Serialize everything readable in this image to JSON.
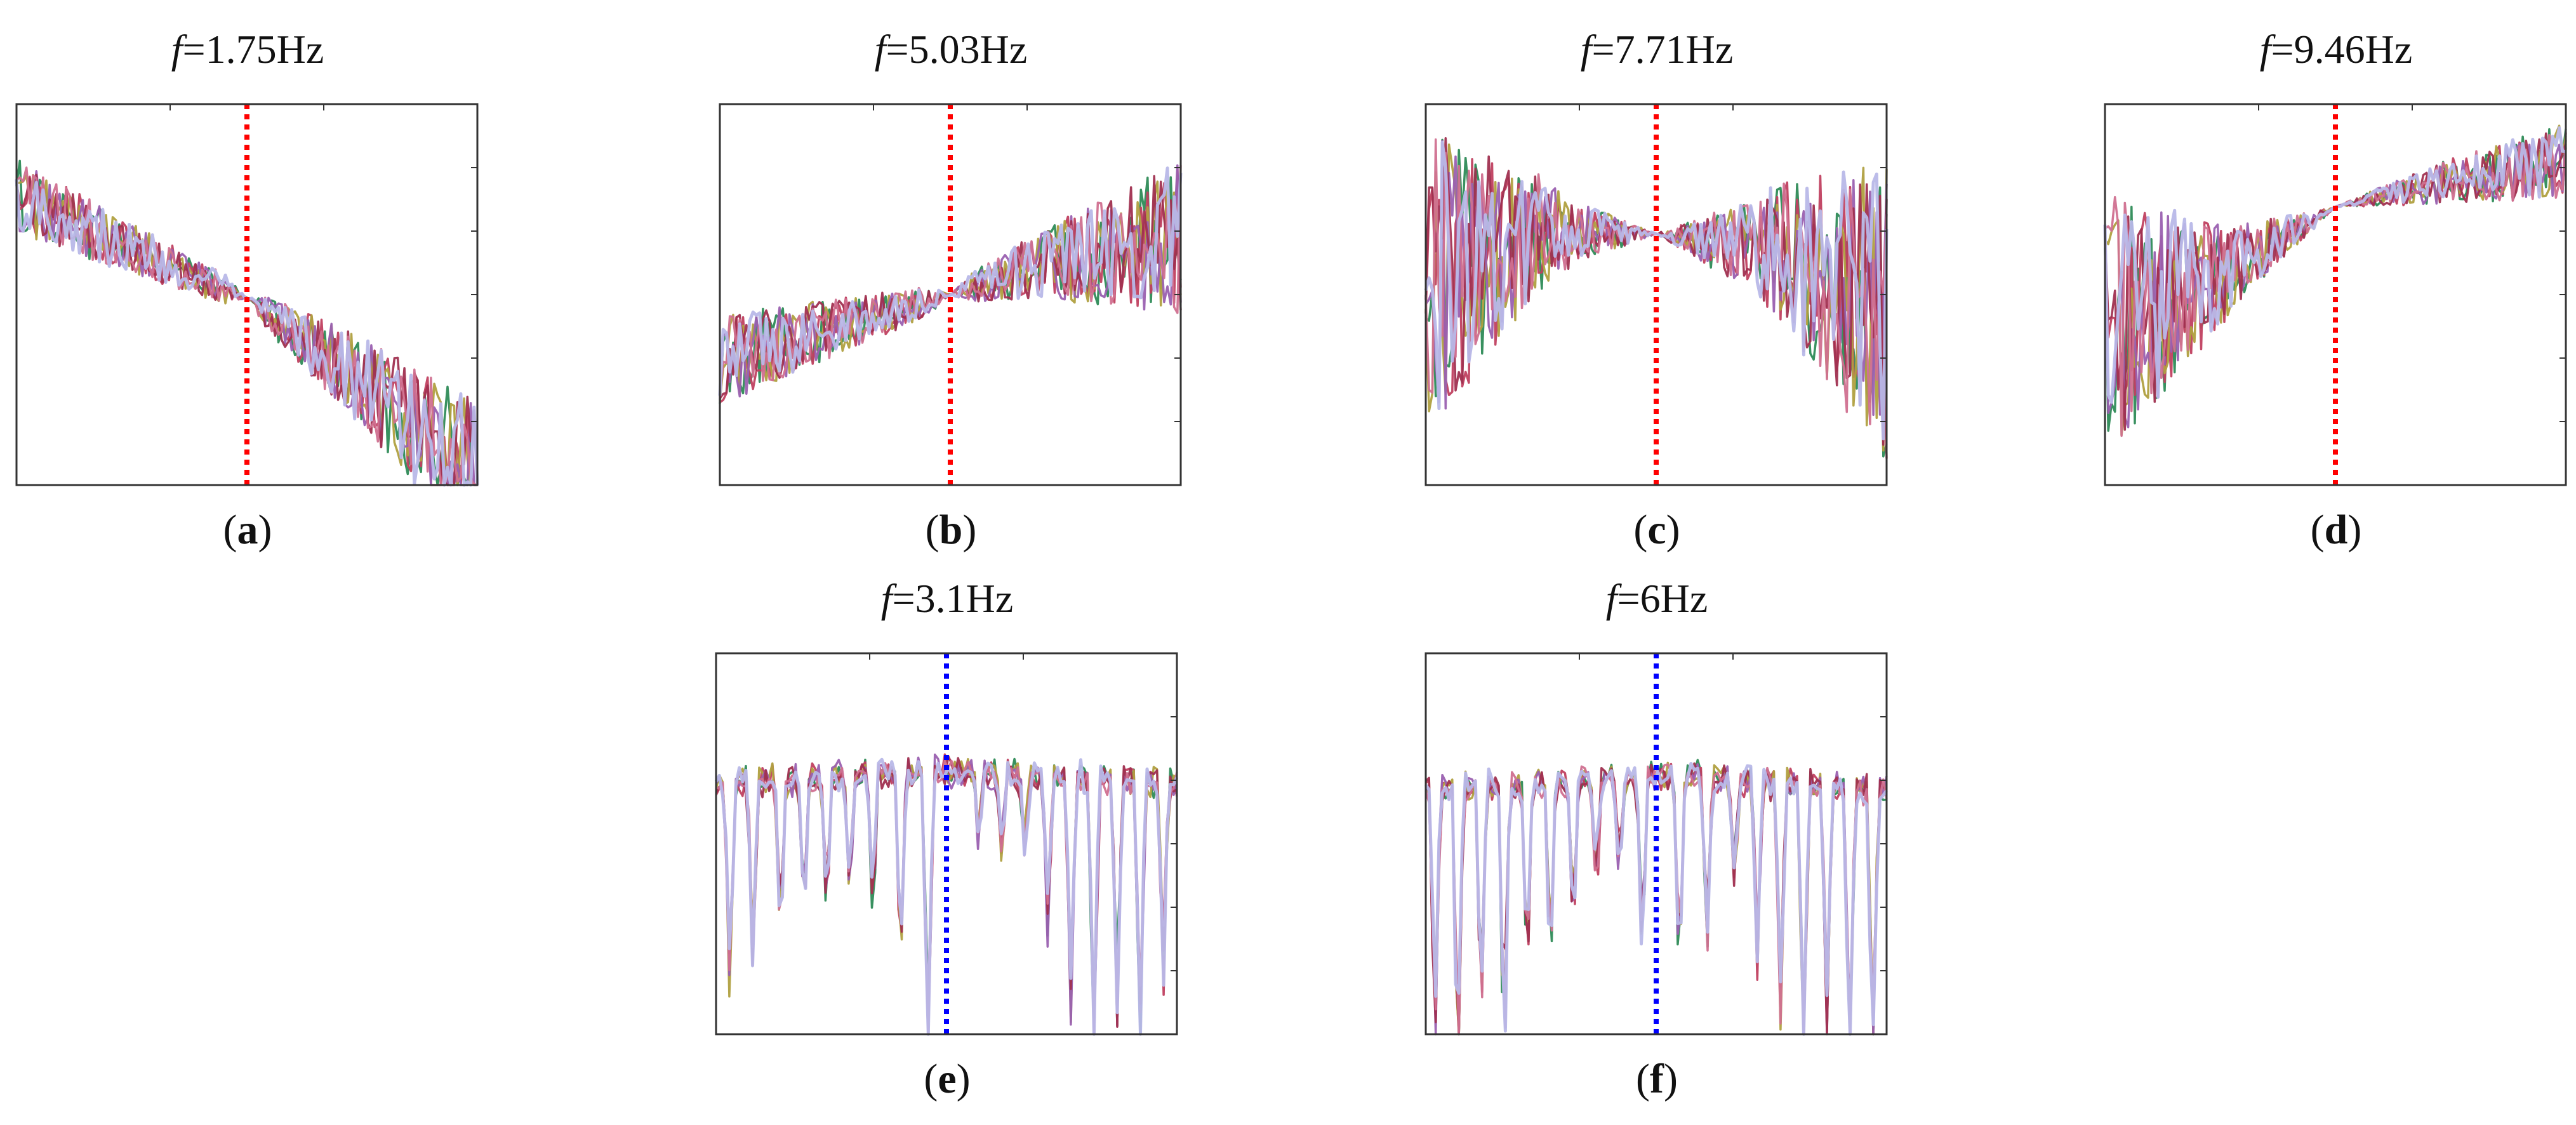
{
  "chart_data": [
    {
      "id": "a",
      "type": "line",
      "title_var": "f",
      "title_value": "=1.75Hz",
      "caption_label": "a",
      "marker_color": "#ff0000",
      "series_colors": [
        "#2e8b57",
        "#c04060",
        "#b0a040",
        "#9a60b0",
        "#a03050",
        "#d07090",
        "#b8b8e8"
      ],
      "n_series": 7,
      "n_points": 140,
      "marker_x": 0.5,
      "ylim": [
        0,
        1
      ],
      "profile": [
        [
          0,
          0.76
        ],
        [
          0.25,
          0.62
        ],
        [
          0.5,
          0.49
        ],
        [
          0.75,
          0.27
        ],
        [
          1,
          0.02
        ]
      ],
      "noise": [
        [
          0,
          0.1
        ],
        [
          0.45,
          0.04
        ],
        [
          0.5,
          0.0
        ],
        [
          0.55,
          0.05
        ],
        [
          1,
          0.2
        ]
      ]
    },
    {
      "id": "b",
      "type": "line",
      "title_var": "f",
      "title_value": "=5.03Hz",
      "caption_label": "b",
      "marker_color": "#ff0000",
      "series_colors": [
        "#2e8b57",
        "#c04060",
        "#b0a040",
        "#9a60b0",
        "#a03050",
        "#d07090",
        "#b8b8e8"
      ],
      "n_series": 7,
      "n_points": 140,
      "marker_x": 0.5,
      "ylim": [
        0,
        1
      ],
      "profile": [
        [
          0,
          0.33
        ],
        [
          0.3,
          0.43
        ],
        [
          0.5,
          0.5
        ],
        [
          0.7,
          0.58
        ],
        [
          1,
          0.65
        ]
      ],
      "noise": [
        [
          0,
          0.12
        ],
        [
          0.45,
          0.04
        ],
        [
          0.5,
          0.0
        ],
        [
          0.55,
          0.04
        ],
        [
          1,
          0.2
        ]
      ]
    },
    {
      "id": "c",
      "type": "line",
      "title_var": "f",
      "title_value": "=7.71Hz",
      "caption_label": "c",
      "marker_color": "#ff0000",
      "series_colors": [
        "#2e8b57",
        "#c04060",
        "#b0a040",
        "#9a60b0",
        "#a03050",
        "#d07090",
        "#b8b8e8"
      ],
      "n_series": 7,
      "n_points": 140,
      "marker_x": 0.5,
      "ylim": [
        0,
        1
      ],
      "profile": [
        [
          0,
          0.52
        ],
        [
          0.25,
          0.66
        ],
        [
          0.5,
          0.66
        ],
        [
          0.75,
          0.62
        ],
        [
          1,
          0.45
        ]
      ],
      "noise": [
        [
          0,
          0.42
        ],
        [
          0.3,
          0.1
        ],
        [
          0.5,
          0.0
        ],
        [
          0.7,
          0.12
        ],
        [
          1,
          0.4
        ]
      ]
    },
    {
      "id": "d",
      "type": "line",
      "title_var": "f",
      "title_value": "=9.46Hz",
      "caption_label": "d",
      "marker_color": "#ff0000",
      "series_colors": [
        "#2e8b57",
        "#c04060",
        "#b0a040",
        "#9a60b0",
        "#a03050",
        "#d07090",
        "#b8b8e8"
      ],
      "n_series": 7,
      "n_points": 140,
      "marker_x": 0.5,
      "ylim": [
        0,
        1
      ],
      "profile": [
        [
          0,
          0.42
        ],
        [
          0.25,
          0.55
        ],
        [
          0.5,
          0.73
        ],
        [
          0.75,
          0.8
        ],
        [
          1,
          0.85
        ]
      ],
      "noise": [
        [
          0,
          0.35
        ],
        [
          0.3,
          0.1
        ],
        [
          0.5,
          0.0
        ],
        [
          0.7,
          0.05
        ],
        [
          1,
          0.1
        ]
      ]
    },
    {
      "id": "e",
      "type": "line",
      "title_var": "f",
      "title_value": "=3.1Hz",
      "caption_label": "e",
      "marker_color": "#0000ff",
      "series_colors": [
        "#2e8b57",
        "#c04060",
        "#b0a040",
        "#9a60b0",
        "#a03050",
        "#d07090",
        "#b8b8e8"
      ],
      "n_series": 7,
      "n_points": 140,
      "marker_x": 0.5,
      "ylim": [
        0,
        1
      ],
      "profile": [
        [
          0,
          0.66
        ],
        [
          0.5,
          0.69
        ],
        [
          1,
          0.66
        ]
      ],
      "noise": [
        [
          0,
          0.03
        ],
        [
          1,
          0.03
        ]
      ],
      "dips": [
        [
          0.03,
          0.62
        ],
        [
          0.08,
          0.55
        ],
        [
          0.14,
          0.5
        ],
        [
          0.19,
          0.45
        ],
        [
          0.24,
          0.4
        ],
        [
          0.29,
          0.35
        ],
        [
          0.34,
          0.42
        ],
        [
          0.4,
          0.58
        ],
        [
          0.46,
          0.9
        ],
        [
          0.57,
          0.2
        ],
        [
          0.62,
          0.25
        ],
        [
          0.67,
          0.22
        ],
        [
          0.72,
          0.45
        ],
        [
          0.77,
          0.68
        ],
        [
          0.82,
          0.85
        ],
        [
          0.87,
          0.7
        ],
        [
          0.92,
          0.8
        ],
        [
          0.97,
          0.6
        ]
      ]
    },
    {
      "id": "f",
      "type": "line",
      "title_var": "f",
      "title_value": "=6Hz",
      "caption_label": "f",
      "marker_color": "#0000ff",
      "series_colors": [
        "#2e8b57",
        "#c04060",
        "#b0a040",
        "#9a60b0",
        "#a03050",
        "#d07090",
        "#b8b8e8"
      ],
      "n_series": 7,
      "n_points": 140,
      "marker_x": 0.5,
      "ylim": [
        0,
        1
      ],
      "profile": [
        [
          0,
          0.64
        ],
        [
          0.5,
          0.68
        ],
        [
          1,
          0.64
        ]
      ],
      "noise": [
        [
          0,
          0.03
        ],
        [
          1,
          0.03
        ]
      ],
      "dips": [
        [
          0.02,
          0.75
        ],
        [
          0.07,
          0.92
        ],
        [
          0.12,
          0.7
        ],
        [
          0.17,
          0.85
        ],
        [
          0.22,
          0.6
        ],
        [
          0.27,
          0.55
        ],
        [
          0.32,
          0.45
        ],
        [
          0.37,
          0.35
        ],
        [
          0.42,
          0.3
        ],
        [
          0.47,
          0.55
        ],
        [
          0.55,
          0.62
        ],
        [
          0.61,
          0.5
        ],
        [
          0.67,
          0.3
        ],
        [
          0.72,
          0.55
        ],
        [
          0.77,
          0.7
        ],
        [
          0.82,
          0.88
        ],
        [
          0.87,
          0.75
        ],
        [
          0.92,
          0.9
        ],
        [
          0.97,
          0.85
        ]
      ]
    }
  ]
}
